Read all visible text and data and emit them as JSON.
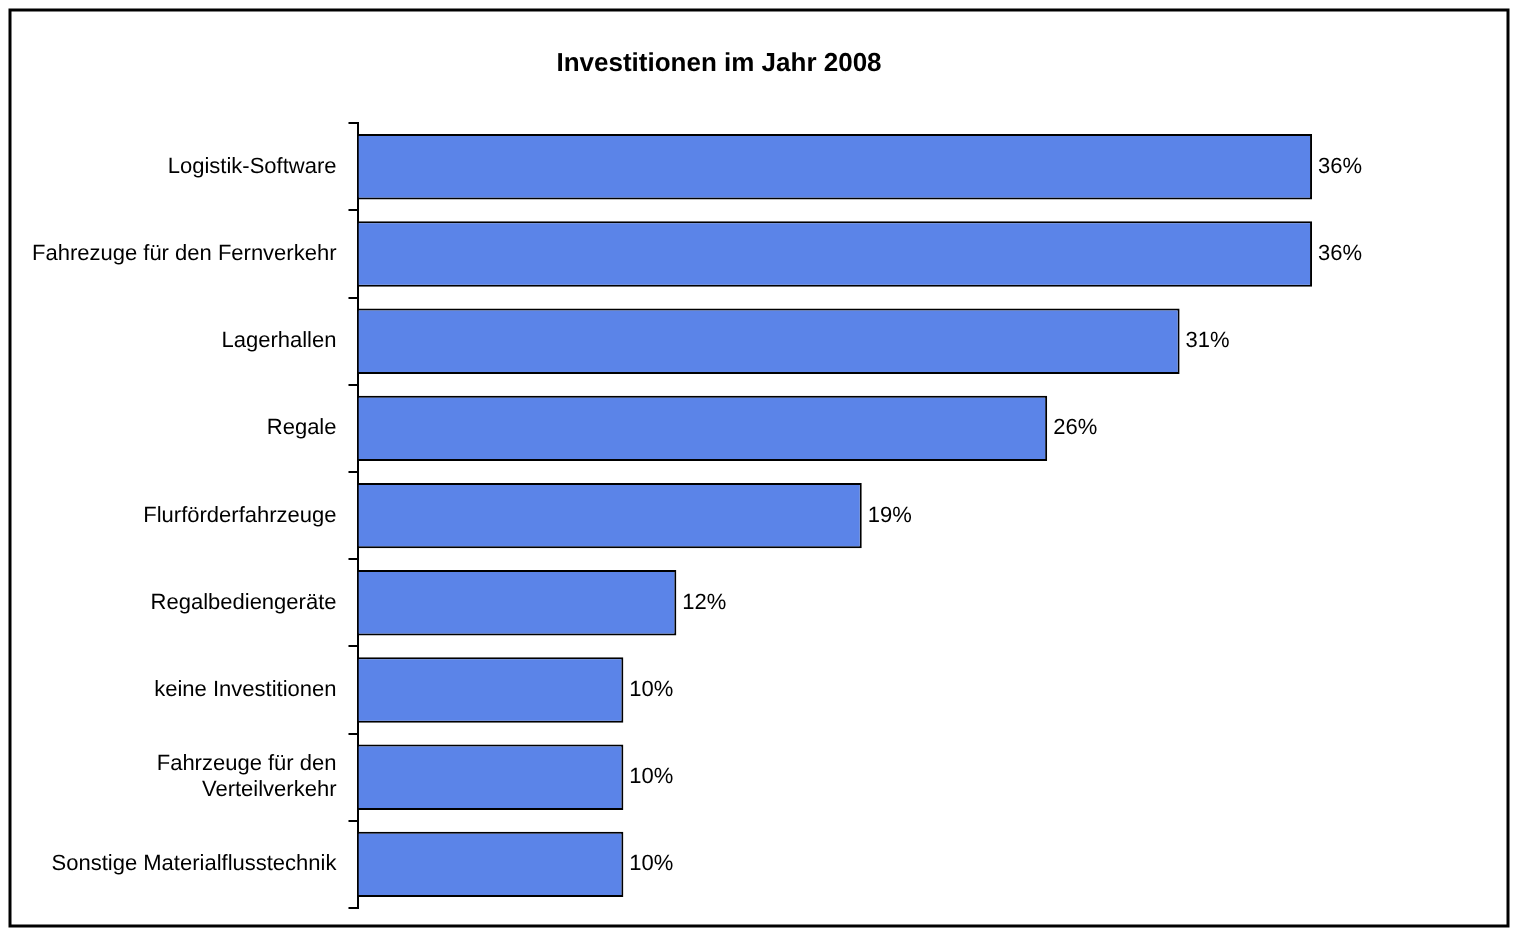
{
  "chart_data": {
    "type": "bar",
    "orientation": "horizontal",
    "title": "Investitionen im Jahr 2008",
    "categories": [
      "Logistik-Software",
      "Fahrezuge für den Fernverkehr",
      "Lagerhallen",
      "Regale",
      "Flurförderfahrzeuge",
      "Regalbediengeräte",
      "keine Investitionen",
      "Fahrzeuge für den Verteilverkehr",
      "Sonstige Materialflusstechnik"
    ],
    "values": [
      36,
      36,
      31,
      26,
      19,
      12,
      10,
      10,
      10
    ],
    "value_labels": [
      "36%",
      "36%",
      "31%",
      "26%",
      "19%",
      "12%",
      "10%",
      "10%",
      "10%"
    ],
    "color": "#5b84e8",
    "grid": false,
    "legend": false
  }
}
